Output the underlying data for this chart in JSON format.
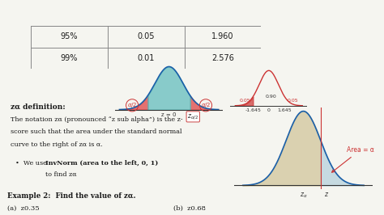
{
  "bg_color": "#f5f5f0",
  "table_rows": [
    [
      "95%",
      "0.05",
      "1.960"
    ],
    [
      "99%",
      "0.01",
      "2.576"
    ]
  ],
  "text_color": "#1a1a1a",
  "title_text": "zα definition:",
  "def_line1": "The notation zα (pronounced “z sub alpha”) is the z-",
  "def_line2": "score such that the area under the standard normal",
  "def_line3": "curve to the right of zα is α.",
  "bullet_text": "We use InvNorm (area to the left, 0, 1) to\n     find zα",
  "example_text": "Example 2:  Find the value of zα.",
  "part_a": "(a)  z0.35",
  "part_b": "(b)  z0.68",
  "black_bar_color": "#111111",
  "white_bg": "#ffffff"
}
